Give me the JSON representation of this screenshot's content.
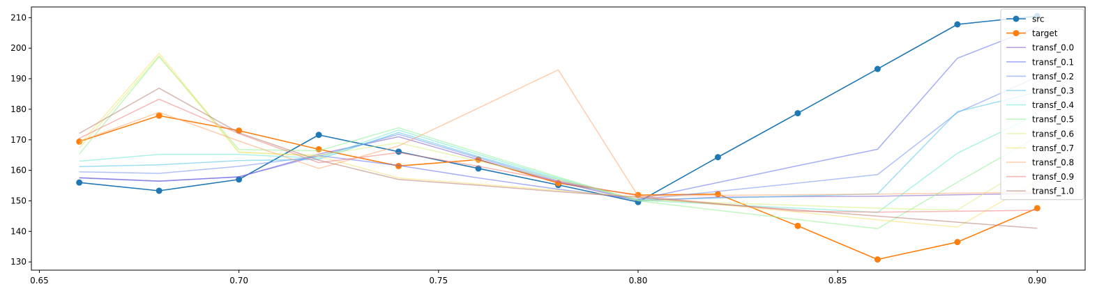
{
  "chart_data": {
    "type": "line",
    "title": "",
    "xlabel": "",
    "ylabel": "",
    "xlim": [
      0.648,
      0.912
    ],
    "ylim": [
      127.3,
      213.5
    ],
    "xticks": [
      0.65,
      0.7,
      0.75,
      0.8,
      0.85,
      0.9
    ],
    "xtick_labels": [
      "0.65",
      "0.70",
      "0.75",
      "0.80",
      "0.85",
      "0.90"
    ],
    "yticks": [
      130,
      140,
      150,
      160,
      170,
      180,
      190,
      200,
      210
    ],
    "ytick_labels": [
      "130",
      "140",
      "150",
      "160",
      "170",
      "180",
      "190",
      "200",
      "210"
    ],
    "grid": false,
    "legend_position": "top-right",
    "series": [
      {
        "name": "src",
        "color": "#1f77b4",
        "marker": "circle",
        "opacity": 1,
        "x": [
          0.66,
          0.68,
          0.7,
          0.72,
          0.74,
          0.76,
          0.78,
          0.8,
          0.82,
          0.84,
          0.86,
          0.88,
          0.9
        ],
        "y": [
          156.0,
          153.3,
          157.0,
          171.6,
          166.1,
          160.6,
          155.2,
          149.6,
          164.3,
          178.7,
          193.2,
          207.8,
          210.5
        ]
      },
      {
        "name": "target",
        "color": "#ff7f0e",
        "marker": "circle",
        "opacity": 1,
        "x": [
          0.66,
          0.68,
          0.7,
          0.72,
          0.74,
          0.76,
          0.78,
          0.8,
          0.82,
          0.84,
          0.86,
          0.88,
          0.9
        ],
        "y": [
          169.4,
          177.9,
          173.0,
          166.9,
          161.4,
          163.5,
          155.8,
          151.9,
          152.2,
          141.8,
          130.8,
          136.5,
          147.6
        ]
      },
      {
        "name": "transf_0.0",
        "color": "#7e57c2",
        "marker": "none",
        "opacity": 0.55,
        "x": [
          0.66,
          0.68,
          0.7,
          0.72,
          0.74,
          0.76,
          0.78,
          0.8,
          0.82,
          0.84,
          0.86,
          0.88,
          0.9
        ],
        "y": [
          157.6,
          156.5,
          157.8,
          165.3,
          171.0,
          163.5,
          156.2,
          150.0,
          151.2,
          151.4,
          151.5,
          152.0,
          152.4
        ]
      },
      {
        "name": "transf_0.1",
        "color": "#5c6bf0",
        "marker": "none",
        "opacity": 0.55,
        "x": [
          0.66,
          0.68,
          0.7,
          0.72,
          0.74,
          0.76,
          0.78,
          0.8,
          0.82,
          0.84,
          0.86,
          0.88,
          0.9
        ],
        "y": [
          157.5,
          156.4,
          157.9,
          164.8,
          161.6,
          157.5,
          153.8,
          150.5,
          156.0,
          161.5,
          166.9,
          196.7,
          206.9
        ]
      },
      {
        "name": "transf_0.2",
        "color": "#6e8ef5",
        "marker": "none",
        "opacity": 0.55,
        "x": [
          0.66,
          0.68,
          0.7,
          0.72,
          0.74,
          0.76,
          0.78,
          0.8,
          0.82,
          0.84,
          0.86,
          0.88,
          0.9
        ],
        "y": [
          159.5,
          159.0,
          161.3,
          164.6,
          171.8,
          164.1,
          156.5,
          150.4,
          153.1,
          155.8,
          158.6,
          178.9,
          190.6
        ]
      },
      {
        "name": "transf_0.3",
        "color": "#4fc3e8",
        "marker": "none",
        "opacity": 0.55,
        "x": [
          0.66,
          0.68,
          0.7,
          0.72,
          0.74,
          0.76,
          0.78,
          0.8,
          0.82,
          0.84,
          0.86,
          0.88,
          0.9
        ],
        "y": [
          161.2,
          161.8,
          163.2,
          163.6,
          172.4,
          164.5,
          157.0,
          150.3,
          150.9,
          151.6,
          152.3,
          179.2,
          185.6
        ]
      },
      {
        "name": "transf_0.4",
        "color": "#6ae8d6",
        "marker": "none",
        "opacity": 0.55,
        "x": [
          0.66,
          0.68,
          0.7,
          0.72,
          0.74,
          0.76,
          0.78,
          0.8,
          0.82,
          0.84,
          0.86,
          0.88,
          0.9
        ],
        "y": [
          163.0,
          165.2,
          165.2,
          164.0,
          173.2,
          165.2,
          157.4,
          150.2,
          148.9,
          147.6,
          146.2,
          165.6,
          178.3
        ]
      },
      {
        "name": "transf_0.5",
        "color": "#8ef08e",
        "marker": "none",
        "opacity": 0.55,
        "x": [
          0.66,
          0.68,
          0.7,
          0.72,
          0.74,
          0.76,
          0.78,
          0.8,
          0.82,
          0.84,
          0.86,
          0.88,
          0.9
        ],
        "y": [
          165.3,
          197.2,
          166.8,
          166.4,
          173.9,
          165.8,
          157.8,
          150.0,
          146.9,
          143.9,
          140.9,
          156.1,
          171.0
        ]
      },
      {
        "name": "transf_0.6",
        "color": "#d4f07a",
        "marker": "none",
        "opacity": 0.55,
        "x": [
          0.66,
          0.68,
          0.7,
          0.72,
          0.74,
          0.76,
          0.78,
          0.8,
          0.82,
          0.84,
          0.86,
          0.88,
          0.9
        ],
        "y": [
          167.3,
          197.5,
          165.8,
          165.0,
          169.0,
          163.0,
          157.0,
          150.3,
          149.4,
          148.5,
          147.6,
          147.0,
          163.0
        ]
      },
      {
        "name": "transf_0.7",
        "color": "#f5e06e",
        "marker": "none",
        "opacity": 0.55,
        "x": [
          0.66,
          0.68,
          0.7,
          0.72,
          0.74,
          0.76,
          0.78,
          0.8,
          0.82,
          0.84,
          0.86,
          0.88,
          0.9
        ],
        "y": [
          168.5,
          198.3,
          166.0,
          164.6,
          157.5,
          155.5,
          153.4,
          151.2,
          148.8,
          146.3,
          143.8,
          141.4,
          156.5
        ]
      },
      {
        "name": "transf_0.8",
        "color": "#ffa66b",
        "marker": "none",
        "opacity": 0.55,
        "x": [
          0.66,
          0.68,
          0.7,
          0.72,
          0.74,
          0.76,
          0.78,
          0.8,
          0.82,
          0.84,
          0.86,
          0.88,
          0.9
        ],
        "y": [
          169.5,
          179.0,
          169.6,
          160.6,
          168.0,
          180.4,
          192.9,
          151.6,
          151.8,
          152.0,
          152.2,
          152.5,
          152.8
        ]
      },
      {
        "name": "transf_0.9",
        "color": "#f07b7b",
        "marker": "none",
        "opacity": 0.55,
        "x": [
          0.66,
          0.68,
          0.7,
          0.72,
          0.74,
          0.76,
          0.78,
          0.8,
          0.82,
          0.84,
          0.86,
          0.88,
          0.9
        ],
        "y": [
          170.5,
          183.3,
          172.0,
          162.5,
          165.8,
          161.3,
          156.4,
          151.6,
          149.1,
          146.6,
          146.3,
          146.6,
          146.9
        ]
      },
      {
        "name": "transf_1.0",
        "color": "#b87a70",
        "marker": "none",
        "opacity": 0.55,
        "x": [
          0.66,
          0.68,
          0.7,
          0.72,
          0.74,
          0.76,
          0.78,
          0.8,
          0.82,
          0.84,
          0.86,
          0.88,
          0.9
        ],
        "y": [
          172.1,
          186.9,
          172.3,
          163.3,
          157.0,
          155.1,
          153.0,
          151.2,
          148.9,
          147.0,
          145.0,
          143.0,
          141.0
        ]
      }
    ]
  }
}
